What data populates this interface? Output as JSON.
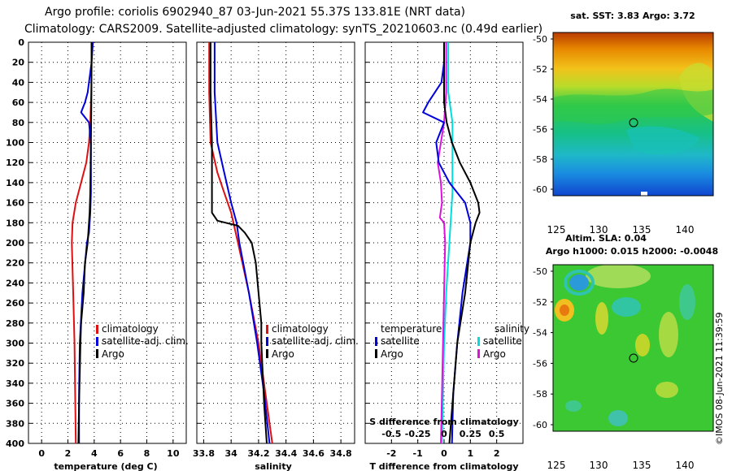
{
  "header": {
    "line1": "Argo profile: coriolis 6902940_87 03-Jun-2021 55.37S 133.81E (NRT data)",
    "line2": "Climatology: CARS2009. Satellite-adjusted climatology: synTS_20210603.nc (0.49d earlier)"
  },
  "colors": {
    "climatology": "#dd1111",
    "satellite": "#0000dd",
    "argo": "#000000",
    "satellite_salinity": "#00dddd",
    "argo_salinity": "#dd11dd"
  },
  "chart_data": [
    {
      "id": "temperature",
      "type": "line",
      "xlabel": "temperature (deg C)",
      "ylabel": "",
      "xlim": [
        -1,
        11
      ],
      "ylim": [
        400,
        0
      ],
      "xticks": [
        "0",
        "2",
        "4",
        "6",
        "8",
        "10"
      ],
      "xtick_values": [
        0,
        2,
        4,
        6,
        8,
        10
      ],
      "yticks": [
        "0",
        "20",
        "40",
        "60",
        "80",
        "100",
        "120",
        "140",
        "160",
        "180",
        "200",
        "220",
        "240",
        "260",
        "280",
        "300",
        "320",
        "340",
        "360",
        "380",
        "400"
      ],
      "grid": true,
      "legend": {
        "position": "right",
        "entries": [
          "climatology",
          "satellite-adj. clim.",
          "Argo"
        ]
      },
      "series": [
        {
          "name": "climatology",
          "depth": [
            0,
            20,
            50,
            80,
            100,
            120,
            140,
            160,
            180,
            200,
            250,
            300,
            350,
            400
          ],
          "values": [
            3.8,
            3.8,
            3.78,
            3.7,
            3.6,
            3.4,
            3.0,
            2.6,
            2.35,
            2.3,
            2.4,
            2.5,
            2.55,
            2.6
          ]
        },
        {
          "name": "satellite-adj. clim.",
          "depth": [
            0,
            20,
            40,
            50,
            60,
            70,
            80,
            100,
            120,
            150,
            170,
            190,
            200,
            250,
            300,
            350,
            400
          ],
          "values": [
            3.9,
            3.8,
            3.6,
            3.5,
            3.3,
            3.0,
            3.6,
            3.75,
            3.75,
            3.75,
            3.7,
            3.6,
            3.45,
            3.1,
            2.9,
            2.85,
            2.85
          ]
        },
        {
          "name": "Argo",
          "depth": [
            0,
            20,
            60,
            100,
            150,
            170,
            180,
            200,
            220,
            250,
            280,
            300,
            330,
            360,
            400
          ],
          "values": [
            3.8,
            3.8,
            3.78,
            3.75,
            3.7,
            3.65,
            3.6,
            3.5,
            3.3,
            3.2,
            3.0,
            2.95,
            2.9,
            2.85,
            2.8
          ]
        }
      ]
    },
    {
      "id": "salinity",
      "type": "line",
      "xlabel": "salinity",
      "ylabel": "",
      "xlim": [
        33.75,
        34.9
      ],
      "ylim": [
        400,
        0
      ],
      "xticks": [
        "33.8",
        "34",
        "34.2",
        "34.4",
        "34.6",
        "34.8"
      ],
      "xtick_values": [
        33.8,
        34.0,
        34.2,
        34.4,
        34.6,
        34.8
      ],
      "grid": true,
      "legend": {
        "position": "right",
        "entries": [
          "climatology",
          "satellite-adj. clim.",
          "Argo"
        ]
      },
      "series": [
        {
          "name": "climatology",
          "depth": [
            0,
            50,
            100,
            130,
            150,
            170,
            200,
            250,
            300,
            350,
            400
          ],
          "values": [
            33.84,
            33.84,
            33.85,
            33.9,
            33.95,
            34.0,
            34.05,
            34.13,
            34.2,
            34.25,
            34.3
          ]
        },
        {
          "name": "satellite-adj. clim.",
          "depth": [
            0,
            50,
            100,
            130,
            160,
            180,
            200,
            250,
            300,
            350,
            400
          ],
          "values": [
            33.88,
            33.88,
            33.9,
            33.95,
            34.0,
            34.04,
            34.06,
            34.13,
            34.19,
            34.24,
            34.28
          ]
        },
        {
          "name": "Argo",
          "depth": [
            0,
            50,
            100,
            150,
            170,
            178,
            183,
            190,
            200,
            220,
            250,
            280,
            300,
            330,
            360,
            400
          ],
          "values": [
            33.85,
            33.85,
            33.86,
            33.86,
            33.86,
            33.9,
            34.05,
            34.1,
            34.15,
            34.18,
            34.2,
            34.22,
            34.22,
            34.23,
            34.24,
            34.26
          ]
        }
      ]
    },
    {
      "id": "difference",
      "type": "line",
      "xlabel": "T difference from climatology",
      "xlabel2": "S difference from climatology",
      "xlim": [
        -3,
        3
      ],
      "ylim": [
        400,
        0
      ],
      "xticks": [
        "-2",
        "-1",
        "0",
        "1",
        "2"
      ],
      "xtick_values": [
        -2,
        -1,
        0,
        1,
        2
      ],
      "xticks2": [
        "-0.5",
        "-0.25",
        "0",
        "0.25",
        "0.5"
      ],
      "xtick2_values": [
        -0.5,
        -0.25,
        0,
        0.25,
        0.5
      ],
      "grid": true,
      "legend": {
        "temperature_title": "temperature",
        "salinity_title": "salinity",
        "temperature_entries": [
          "satellite",
          "Argo"
        ],
        "salinity_entries": [
          "satellite",
          "Argo"
        ]
      },
      "series": [
        {
          "name": "temperature satellite",
          "depth": [
            0,
            20,
            40,
            60,
            70,
            80,
            100,
            120,
            140,
            160,
            180,
            200,
            250,
            300,
            350,
            400
          ],
          "values": [
            0.0,
            0.0,
            -0.1,
            -0.6,
            -0.8,
            0.0,
            -0.3,
            -0.2,
            0.2,
            0.8,
            1.0,
            1.0,
            0.7,
            0.5,
            0.35,
            0.3
          ]
        },
        {
          "name": "temperature Argo",
          "depth": [
            0,
            20,
            60,
            80,
            100,
            120,
            140,
            160,
            170,
            180,
            200,
            250,
            300,
            350,
            400
          ],
          "values": [
            0.0,
            0.0,
            0.0,
            0.1,
            0.3,
            0.6,
            1.0,
            1.3,
            1.35,
            1.2,
            1.0,
            0.8,
            0.5,
            0.35,
            0.2
          ]
        },
        {
          "name": "salinity satellite",
          "depth": [
            0,
            50,
            80,
            100,
            150,
            200,
            250,
            300,
            350,
            400
          ],
          "values": [
            0.04,
            0.04,
            0.08,
            0.08,
            0.08,
            0.05,
            0.02,
            0.0,
            -0.01,
            -0.02
          ]
        },
        {
          "name": "salinity Argo",
          "depth": [
            0,
            50,
            80,
            100,
            120,
            140,
            160,
            175,
            180,
            200,
            250,
            300,
            350,
            400
          ],
          "values": [
            0.02,
            0.02,
            0.0,
            -0.03,
            -0.06,
            -0.03,
            -0.02,
            -0.04,
            0.0,
            0.01,
            0.0,
            -0.01,
            -0.02,
            -0.03
          ]
        }
      ]
    }
  ],
  "maps": {
    "sst": {
      "title": "sat. SST: 3.83 Argo: 3.72",
      "xticks": [
        "125",
        "130",
        "135",
        "140"
      ],
      "yticks": [
        "-50",
        "-52",
        "-54",
        "-56",
        "-58",
        "-60"
      ]
    },
    "sla": {
      "title_line1": "Altim. SLA: 0.04",
      "title_line2": "Argo h1000: 0.015 h2000: -0.0048",
      "xticks": [
        "125",
        "130",
        "135",
        "140"
      ],
      "yticks": [
        "-50",
        "-52",
        "-54",
        "-56",
        "-58",
        "-60"
      ]
    }
  },
  "footer": {
    "credit": "©IMOS 08-Jun-2021 11:39:59"
  }
}
